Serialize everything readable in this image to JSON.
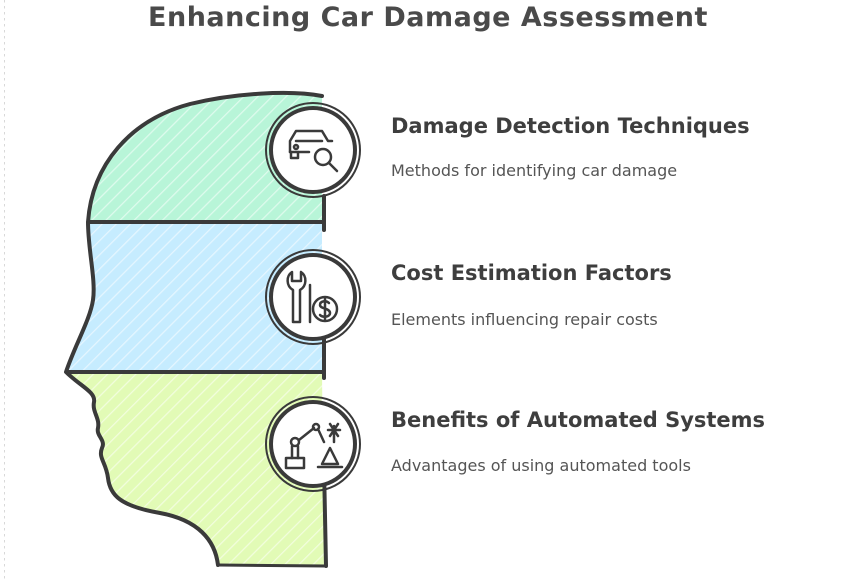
{
  "title": "Enhancing Car Damage Assessment",
  "colors": {
    "top_section": "#b8f5d8",
    "middle_section": "#c6ecff",
    "bottom_section": "#e2fbb6",
    "outline": "#3a3a3a"
  },
  "items": [
    {
      "title": "Damage Detection Techniques",
      "description": "Methods for identifying car damage",
      "icon": "car-magnifier-icon"
    },
    {
      "title": "Cost Estimation Factors",
      "description": "Elements influencing repair costs",
      "icon": "wrench-dollar-icon"
    },
    {
      "title": "Benefits of Automated Systems",
      "description": "Advantages of using automated tools",
      "icon": "robot-arm-icon"
    }
  ]
}
